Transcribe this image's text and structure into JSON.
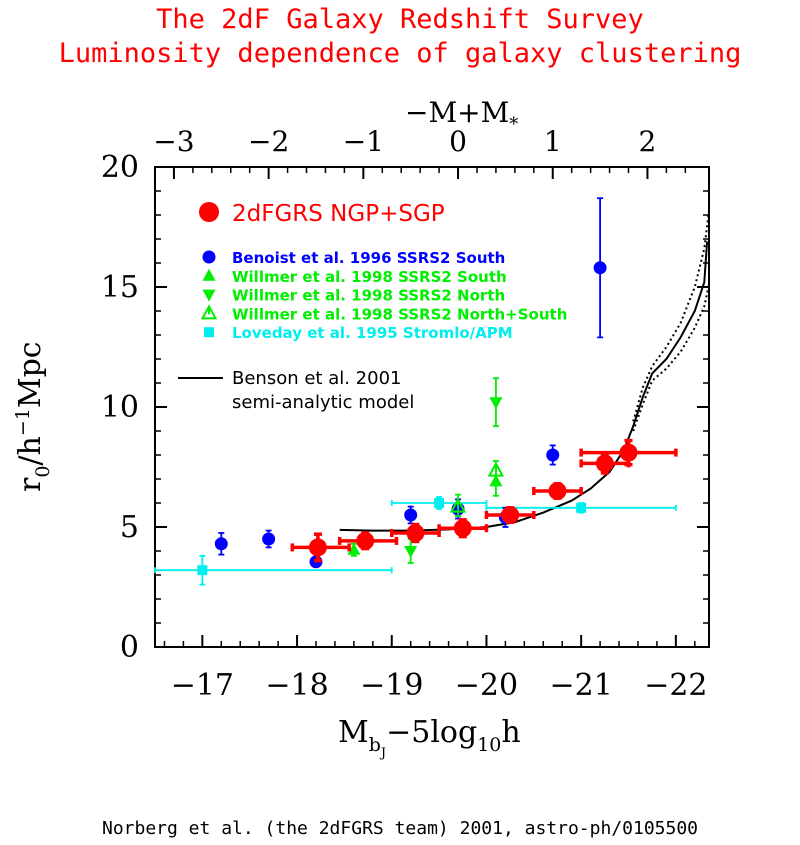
{
  "page": {
    "title_line1": "The 2dF Galaxy Redshift Survey",
    "title_line2": "Luminosity dependence of galaxy clustering",
    "credit": "Norberg et al. (the 2dFGRS team) 2001, astro-ph/0105500"
  },
  "chart_data": {
    "type": "scatter",
    "x_axis": {
      "label_main": "M",
      "label_sub": "b",
      "label_subsub": "J",
      "label_rest": "−5log",
      "label_sub2": "10",
      "label_end": "h",
      "range": [
        -16.5,
        -22.35
      ],
      "ticks": [
        -17,
        -18,
        -19,
        -20,
        -21,
        -22
      ],
      "tick_labels": [
        "−17",
        "−18",
        "−19",
        "−20",
        "−21",
        "−22"
      ]
    },
    "top_axis": {
      "label_a": "−M+M",
      "label_b": "*",
      "ticks": [
        -3,
        -2,
        -1,
        0,
        1,
        2
      ],
      "tick_labels": [
        "−3",
        "−2",
        "−1",
        "0",
        "1",
        "2"
      ]
    },
    "y_axis": {
      "label_a": "r",
      "label_b": "0",
      "label_c": "/h",
      "label_d": "−1",
      "label_e": "Mpc",
      "range": [
        0,
        20
      ],
      "ticks": [
        0,
        5,
        10,
        15,
        20
      ],
      "tick_labels": [
        "0",
        "5",
        "10",
        "15",
        "20"
      ]
    },
    "legend_main": "2dFGRS NGP+SGP",
    "legend": [
      {
        "label": "Benoist et al. 1996 SSRS2 South",
        "color": "#0000ff",
        "marker": "circle"
      },
      {
        "label": "Willmer et al. 1998 SSRS2 South",
        "color": "#00ee00",
        "marker": "triangle-up"
      },
      {
        "label": "Willmer et al. 1998 SSRS2 North",
        "color": "#00ee00",
        "marker": "triangle-down"
      },
      {
        "label": "Willmer et al. 1998 SSRS2 North+South",
        "color": "#00ee00",
        "marker": "tri-open"
      },
      {
        "label": "Loveday et al. 1995 Stromlo/APM",
        "color": "#00eeee",
        "marker": "square"
      }
    ],
    "model_label_1": "Benson et al. 2001",
    "model_label_2": "semi-analytic model",
    "series": [
      {
        "name": "2dFGRS NGP+SGP",
        "color": "#ff0000",
        "marker": "big-circle",
        "points": [
          {
            "x": -18.22,
            "y": 4.15,
            "xlo": -17.95,
            "xhi": -18.55,
            "ylo": 3.6,
            "yhi": 4.7
          },
          {
            "x": -18.72,
            "y": 4.42,
            "xlo": -18.45,
            "xhi": -19.05,
            "ylo": 4.1,
            "yhi": 4.75
          },
          {
            "x": -19.25,
            "y": 4.75,
            "xlo": -19.0,
            "xhi": -19.5,
            "ylo": 4.4,
            "yhi": 5.1
          },
          {
            "x": -19.75,
            "y": 4.95,
            "xlo": -19.5,
            "xhi": -20.0,
            "ylo": 4.6,
            "yhi": 5.3
          },
          {
            "x": -20.25,
            "y": 5.5,
            "xlo": -20.0,
            "xhi": -20.5,
            "ylo": 5.2,
            "yhi": 5.8
          },
          {
            "x": -20.75,
            "y": 6.5,
            "xlo": -20.5,
            "xhi": -21.0,
            "ylo": 6.2,
            "yhi": 6.8
          },
          {
            "x": -21.25,
            "y": 7.65,
            "xlo": -21.0,
            "xhi": -21.5,
            "ylo": 7.25,
            "yhi": 8.05
          },
          {
            "x": -21.5,
            "y": 8.1,
            "xlo": -21.0,
            "xhi": -22.0,
            "ylo": 7.6,
            "yhi": 8.6
          }
        ]
      },
      {
        "name": "Benoist et al. 1996 SSRS2 South",
        "color": "#0000ff",
        "marker": "circle",
        "points": [
          {
            "x": -17.2,
            "y": 4.3,
            "ylo": 3.85,
            "yhi": 4.75
          },
          {
            "x": -17.7,
            "y": 4.5,
            "ylo": 4.15,
            "yhi": 4.85
          },
          {
            "x": -18.2,
            "y": 3.55,
            "ylo": 3.35,
            "yhi": 3.75
          },
          {
            "x": -19.2,
            "y": 5.5,
            "ylo": 5.15,
            "yhi": 5.85
          },
          {
            "x": -19.7,
            "y": 5.75,
            "ylo": 5.35,
            "yhi": 6.15
          },
          {
            "x": -20.2,
            "y": 5.4,
            "ylo": 5.0,
            "yhi": 5.8
          },
          {
            "x": -20.7,
            "y": 8.0,
            "ylo": 7.6,
            "yhi": 8.4
          },
          {
            "x": -21.2,
            "y": 15.8,
            "ylo": 12.9,
            "yhi": 18.7
          }
        ]
      },
      {
        "name": "Willmer et al. 1998 SSRS2 South",
        "color": "#00ee00",
        "marker": "triangle-up",
        "points": [
          {
            "x": -18.6,
            "y": 4.05,
            "ylo": 3.8,
            "yhi": 4.3
          },
          {
            "x": -20.1,
            "y": 6.9,
            "ylo": 6.3,
            "yhi": 7.5
          }
        ]
      },
      {
        "name": "Willmer et al. 1998 SSRS2 North",
        "color": "#00ee00",
        "marker": "triangle-down",
        "points": [
          {
            "x": -19.2,
            "y": 4.0,
            "ylo": 3.5,
            "yhi": 4.5
          },
          {
            "x": -20.1,
            "y": 10.2,
            "ylo": 9.2,
            "yhi": 11.2
          }
        ]
      },
      {
        "name": "Willmer et al. 1998 SSRS2 North+South",
        "color": "#00ee00",
        "marker": "tri-open",
        "points": [
          {
            "x": -19.7,
            "y": 5.85,
            "ylo": 5.45,
            "yhi": 6.35
          },
          {
            "x": -20.1,
            "y": 7.35,
            "ylo": 6.95,
            "yhi": 7.75
          }
        ]
      },
      {
        "name": "Loveday et al. 1995 Stromlo/APM",
        "color": "#00eeee",
        "marker": "square",
        "points": [
          {
            "x": -17.0,
            "y": 3.2,
            "xlo": -16.5,
            "xhi": -19.0,
            "ylo": 2.6,
            "yhi": 3.8
          },
          {
            "x": -19.5,
            "y": 6.0,
            "xlo": -19.0,
            "xhi": -20.0,
            "ylo": 5.75,
            "yhi": 6.25
          },
          {
            "x": -21.0,
            "y": 5.8,
            "xlo": -20.0,
            "xhi": -22.0,
            "ylo": 5.6,
            "yhi": 6.0
          }
        ]
      }
    ],
    "model": {
      "mean": [
        [
          -18.45,
          4.88
        ],
        [
          -18.8,
          4.85
        ],
        [
          -19.2,
          4.85
        ],
        [
          -19.6,
          4.9
        ],
        [
          -20.0,
          5.0
        ],
        [
          -20.3,
          5.2
        ],
        [
          -20.6,
          5.6
        ],
        [
          -20.9,
          6.1
        ],
        [
          -21.1,
          6.6
        ],
        [
          -21.3,
          7.3
        ],
        [
          -21.45,
          8.2
        ],
        [
          -21.55,
          9.2
        ],
        [
          -21.65,
          10.4
        ],
        [
          -21.75,
          11.4
        ],
        [
          -21.9,
          12.0
        ],
        [
          -22.05,
          12.9
        ],
        [
          -22.2,
          14.0
        ],
        [
          -22.3,
          15.2
        ],
        [
          -22.33,
          16.9
        ]
      ],
      "upper": [
        [
          -21.55,
          9.4
        ],
        [
          -21.65,
          10.8
        ],
        [
          -21.75,
          11.7
        ],
        [
          -21.9,
          12.5
        ],
        [
          -22.05,
          13.5
        ],
        [
          -22.2,
          15.0
        ],
        [
          -22.3,
          16.6
        ],
        [
          -22.35,
          18.2
        ]
      ],
      "lower": [
        [
          -21.55,
          9.0
        ],
        [
          -21.65,
          10.1
        ],
        [
          -21.75,
          11.1
        ],
        [
          -21.9,
          11.6
        ],
        [
          -22.05,
          12.3
        ],
        [
          -22.2,
          13.3
        ],
        [
          -22.3,
          14.2
        ],
        [
          -22.35,
          15.1
        ]
      ]
    }
  }
}
